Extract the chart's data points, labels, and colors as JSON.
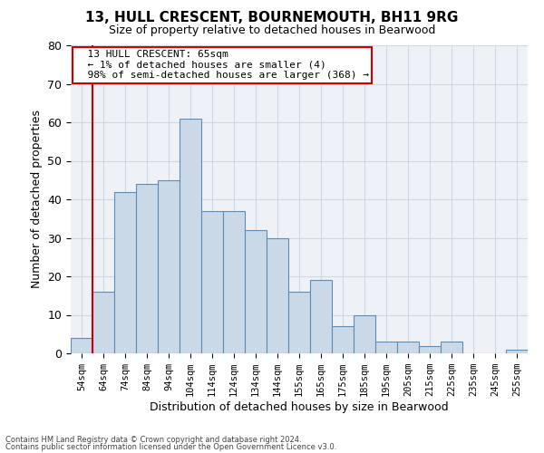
{
  "title1": "13, HULL CRESCENT, BOURNEMOUTH, BH11 9RG",
  "title2": "Size of property relative to detached houses in Bearwood",
  "xlabel": "Distribution of detached houses by size in Bearwood",
  "ylabel": "Number of detached properties",
  "bar_labels": [
    "54sqm",
    "64sqm",
    "74sqm",
    "84sqm",
    "94sqm",
    "104sqm",
    "114sqm",
    "124sqm",
    "134sqm",
    "144sqm",
    "155sqm",
    "165sqm",
    "175sqm",
    "185sqm",
    "195sqm",
    "205sqm",
    "215sqm",
    "225sqm",
    "235sqm",
    "245sqm",
    "255sqm"
  ],
  "bar_values": [
    4,
    16,
    42,
    44,
    45,
    61,
    37,
    37,
    32,
    30,
    16,
    19,
    7,
    10,
    3,
    3,
    2,
    3,
    0,
    0,
    1
  ],
  "bar_color": "#c9d9e8",
  "bar_edge_color": "#5b8db8",
  "property_line_x": 1,
  "annotation_text": "  13 HULL CRESCENT: 65sqm\n  ← 1% of detached houses are smaller (4)\n  98% of semi-detached houses are larger (368) →",
  "annotation_box_color": "#ffffff",
  "annotation_box_edge_color": "#cc0000",
  "property_line_color": "#cc0000",
  "ylim": [
    0,
    80
  ],
  "yticks": [
    0,
    10,
    20,
    30,
    40,
    50,
    60,
    70,
    80
  ],
  "grid_color": "#d0d8e0",
  "background_color": "#eef2f7",
  "footnote1": "Contains HM Land Registry data © Crown copyright and database right 2024.",
  "footnote2": "Contains public sector information licensed under the Open Government Licence v3.0."
}
